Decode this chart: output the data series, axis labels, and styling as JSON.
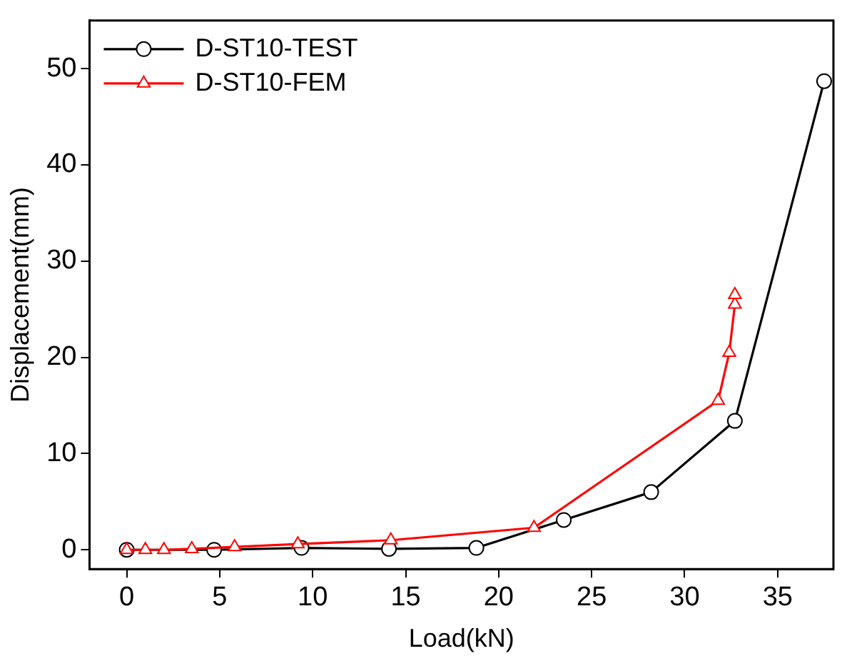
{
  "chart_data": {
    "type": "line",
    "xlabel": "Load(kN)",
    "ylabel": "Displacement(mm)",
    "xlim": [
      -2,
      38
    ],
    "xticks": [
      0,
      5,
      10,
      15,
      20,
      25,
      30,
      35
    ],
    "ylim": [
      -2,
      55
    ],
    "yticks": [
      0,
      10,
      20,
      30,
      40,
      50
    ],
    "grid": false,
    "legend": "top left",
    "series": [
      {
        "name": "D-ST10-TEST",
        "color": "#000000",
        "marker": "circle",
        "x": [
          0,
          4.7,
          9.4,
          14.1,
          18.8,
          23.5,
          28.2,
          32.7,
          37.5
        ],
        "values": [
          0,
          0,
          0.2,
          0.1,
          0.2,
          3.1,
          6,
          13.4,
          48.7
        ]
      },
      {
        "name": "D-ST10-FEM",
        "color": "#ff0000",
        "marker": "triangle",
        "x": [
          0,
          1,
          2,
          3.5,
          5.8,
          9.2,
          14.2,
          21.9,
          31.8,
          32.4,
          32.7,
          32.7
        ],
        "values": [
          0,
          0,
          0,
          0.1,
          0.3,
          0.6,
          1,
          2.3,
          15.5,
          20.5,
          25.5,
          26.5
        ]
      }
    ]
  }
}
